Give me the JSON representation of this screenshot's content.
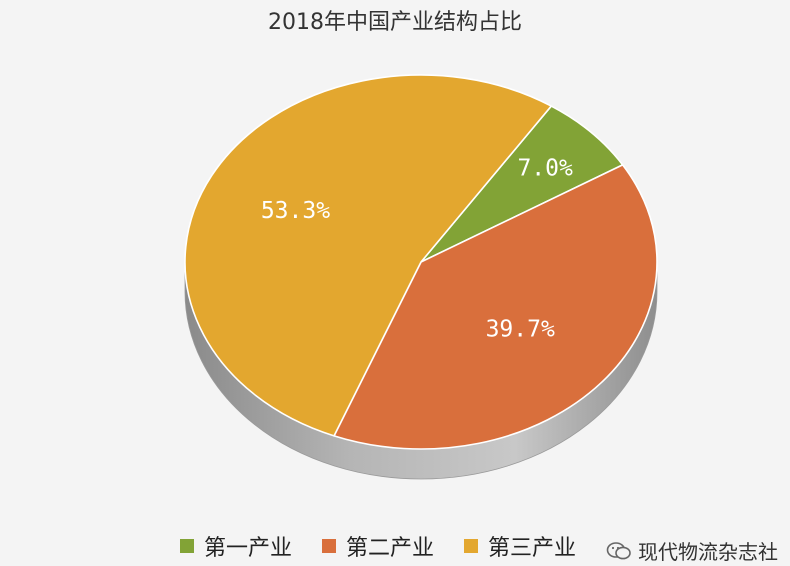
{
  "chart_data": {
    "type": "pie",
    "title": "2018年中国产业结构占比",
    "categories": [
      "第一产业",
      "第二产业",
      "第三产业"
    ],
    "values": [
      7.0,
      39.7,
      53.3
    ],
    "labels": [
      "7.0%",
      "39.7%",
      "53.3%"
    ],
    "colors": [
      "#82a336",
      "#d96f3c",
      "#e3a72f"
    ],
    "legend_position": "bottom",
    "style": "3d"
  },
  "watermark": {
    "text": "现代物流杂志社",
    "icon": "wechat-icon"
  }
}
